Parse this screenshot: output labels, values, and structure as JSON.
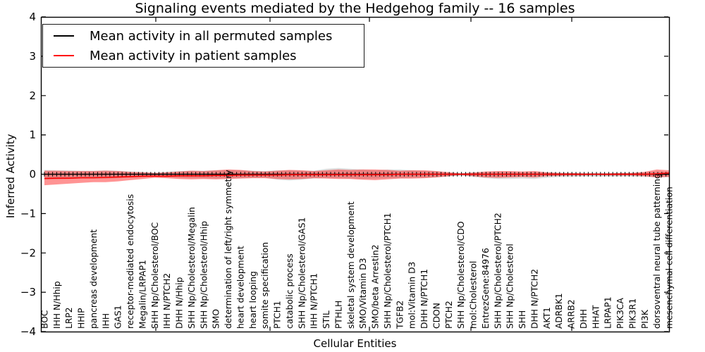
{
  "header": {
    "title": "Signaling events mediated by the Hedgehog family -- 16 samples"
  },
  "axes": {
    "xlabel": "Cellular Entities",
    "ylabel": "Inferred Activity"
  },
  "legend": {
    "position": "upper left",
    "items": [
      {
        "label": "Mean activity in all permuted samples",
        "color": "#000000"
      },
      {
        "label": "Mean activity in patient samples",
        "color": "#ff0000"
      }
    ]
  },
  "chart_data": {
    "type": "area",
    "title": "Signaling events mediated by the Hedgehog family -- 16 samples",
    "xlabel": "Cellular Entities",
    "ylabel": "Inferred Activity",
    "ylim": [
      -4,
      4
    ],
    "ytick_labels": [
      "4",
      "3",
      "2",
      "1",
      "0",
      "−1",
      "−2",
      "−3",
      "−4"
    ],
    "ytick_values": [
      4,
      3,
      2,
      1,
      0,
      -1,
      -2,
      -3,
      -4
    ],
    "grid": false,
    "legend_position": "upper left",
    "sample_count_in_title": "16 samples",
    "categories": [
      "BOC",
      "IHH N/Hhip",
      "LRP2",
      "HHIP",
      "pancreas development",
      "IHH",
      "GAS1",
      "receptor-mediated endocytosis",
      "Megalin/LRPAP1",
      "SHH Np/Cholesterol/BOC",
      "IHH N/PTCH2",
      "DHH N/Hhip",
      "SHH Np/Cholesterol/Megalin",
      "SHH Np/Cholesterol/Hhip",
      "SMO",
      "determination of left/right symmetry",
      "heart development",
      "heart looping",
      "somite specification",
      "PTCH1",
      "catabolic process",
      "SHH Np/Cholesterol/GAS1",
      "IHH N/PTCH1",
      "STIL",
      "PTHLH",
      "skeletal system development",
      "SMO/Vitamin D3",
      "SMO/beta Arrestin2",
      "SHH Np/Cholesterol/PTCH1",
      "TGFB2",
      "mol:Vitamin D3",
      "DHH N/PTCH1",
      "CDON",
      "PTCH2",
      "SHH Np/Cholesterol/CDO",
      "mol:Cholesterol",
      "EntrezGene:84976",
      "SHH Np/Cholesterol/PTCH2",
      "SHH Np/Cholesterol",
      "SHH",
      "DHH N/PTCH2",
      "AKT1",
      "ADRBK1",
      "ARRB2",
      "DHH",
      "HHAT",
      "LRPAP1",
      "PIK3CA",
      "PIK3R1",
      "PI3K",
      "dorsoventral neural tube patterning",
      "mesenchymal cell differentiation"
    ],
    "series": [
      {
        "name": "Mean activity in all permuted samples",
        "kind": "line",
        "color": "#000000",
        "marker": "tick",
        "values": [
          0,
          0,
          0,
          0,
          0,
          0,
          0,
          0,
          0,
          0,
          0,
          0,
          0,
          0,
          0,
          0,
          0,
          0,
          0,
          0,
          0,
          0,
          0,
          0,
          0,
          0,
          0,
          0,
          0,
          0,
          0,
          0,
          0,
          0,
          0,
          0,
          0,
          0,
          0,
          0,
          0,
          0,
          0,
          0,
          0,
          0,
          0,
          0,
          0,
          0,
          0,
          0
        ]
      },
      {
        "name": "Mean activity in patient samples",
        "kind": "line",
        "color": "#ff0000",
        "marker": "none",
        "values": [
          -0.11,
          -0.1,
          -0.1,
          -0.09,
          -0.09,
          -0.08,
          -0.07,
          -0.06,
          -0.05,
          -0.05,
          -0.05,
          -0.04,
          -0.04,
          -0.04,
          -0.03,
          -0.03,
          -0.02,
          -0.02,
          -0.02,
          -0.02,
          -0.01,
          -0.01,
          -0.01,
          -0.01,
          -0.01,
          -0.01,
          -0.01,
          -0.01,
          -0.01,
          0.0,
          0.0,
          0.0,
          0.0,
          0.0,
          0.0,
          0.0,
          0.0,
          0.0,
          0.0,
          0.0,
          0.0,
          0.0,
          0.0,
          0.0,
          0.0,
          0.0,
          0.0,
          0.0,
          0.0,
          0.0,
          0.01,
          0.03
        ]
      },
      {
        "name": "Permuted samples activity band",
        "kind": "band",
        "color": "#000000",
        "opacity": 0.13,
        "upper": [
          0.11,
          0.1,
          0.1,
          0.09,
          0.09,
          0.1,
          0.09,
          0.07,
          0.06,
          0.04,
          0.06,
          0.08,
          0.09,
          0.09,
          0.1,
          0.11,
          0.1,
          0.09,
          0.08,
          0.1,
          0.1,
          0.09,
          0.09,
          0.14,
          0.16,
          0.14,
          0.12,
          0.1,
          0.12,
          0.12,
          0.1,
          0.08,
          0.07,
          0.05,
          0.03,
          0.05,
          0.06,
          0.06,
          0.06,
          0.05,
          0.06,
          0.05,
          0.04,
          0.04,
          0.03,
          0.03,
          0.03,
          0.04,
          0.04,
          0.05,
          0.07,
          0.06
        ],
        "lower": [
          -0.13,
          -0.13,
          -0.12,
          -0.11,
          -0.11,
          -0.11,
          -0.1,
          -0.09,
          -0.08,
          -0.06,
          -0.08,
          -0.09,
          -0.1,
          -0.1,
          -0.11,
          -0.1,
          -0.1,
          -0.09,
          -0.09,
          -0.14,
          -0.16,
          -0.14,
          -0.11,
          -0.1,
          -0.1,
          -0.11,
          -0.12,
          -0.11,
          -0.1,
          -0.1,
          -0.09,
          -0.09,
          -0.08,
          -0.06,
          -0.03,
          -0.07,
          -0.1,
          -0.12,
          -0.12,
          -0.11,
          -0.12,
          -0.09,
          -0.07,
          -0.07,
          -0.06,
          -0.06,
          -0.06,
          -0.06,
          -0.06,
          -0.07,
          -0.08,
          -0.07
        ]
      },
      {
        "name": "Patient samples activity band",
        "kind": "band",
        "color": "#ff0000",
        "opacity": 0.42,
        "upper": [
          0.09,
          0.09,
          0.08,
          0.08,
          0.08,
          0.09,
          0.08,
          0.06,
          0.05,
          0.03,
          0.05,
          0.07,
          0.09,
          0.08,
          0.1,
          0.12,
          0.11,
          0.08,
          0.07,
          0.09,
          0.11,
          0.1,
          0.08,
          0.1,
          0.12,
          0.11,
          0.12,
          0.12,
          0.11,
          0.09,
          0.1,
          0.1,
          0.08,
          0.05,
          0.02,
          0.04,
          0.07,
          0.08,
          0.08,
          0.07,
          0.08,
          0.05,
          0.03,
          0.03,
          0.02,
          0.02,
          0.02,
          0.03,
          0.03,
          0.06,
          0.12,
          0.1
        ],
        "lower": [
          -0.28,
          -0.26,
          -0.24,
          -0.22,
          -0.2,
          -0.2,
          -0.18,
          -0.15,
          -0.12,
          -0.09,
          -0.1,
          -0.12,
          -0.13,
          -0.12,
          -0.13,
          -0.12,
          -0.11,
          -0.1,
          -0.1,
          -0.12,
          -0.13,
          -0.12,
          -0.1,
          -0.11,
          -0.12,
          -0.12,
          -0.14,
          -0.15,
          -0.13,
          -0.11,
          -0.11,
          -0.1,
          -0.08,
          -0.05,
          -0.02,
          -0.05,
          -0.08,
          -0.09,
          -0.08,
          -0.07,
          -0.08,
          -0.05,
          -0.04,
          -0.03,
          -0.03,
          -0.02,
          -0.03,
          -0.03,
          -0.03,
          -0.05,
          -0.08,
          -0.07
        ]
      }
    ]
  }
}
